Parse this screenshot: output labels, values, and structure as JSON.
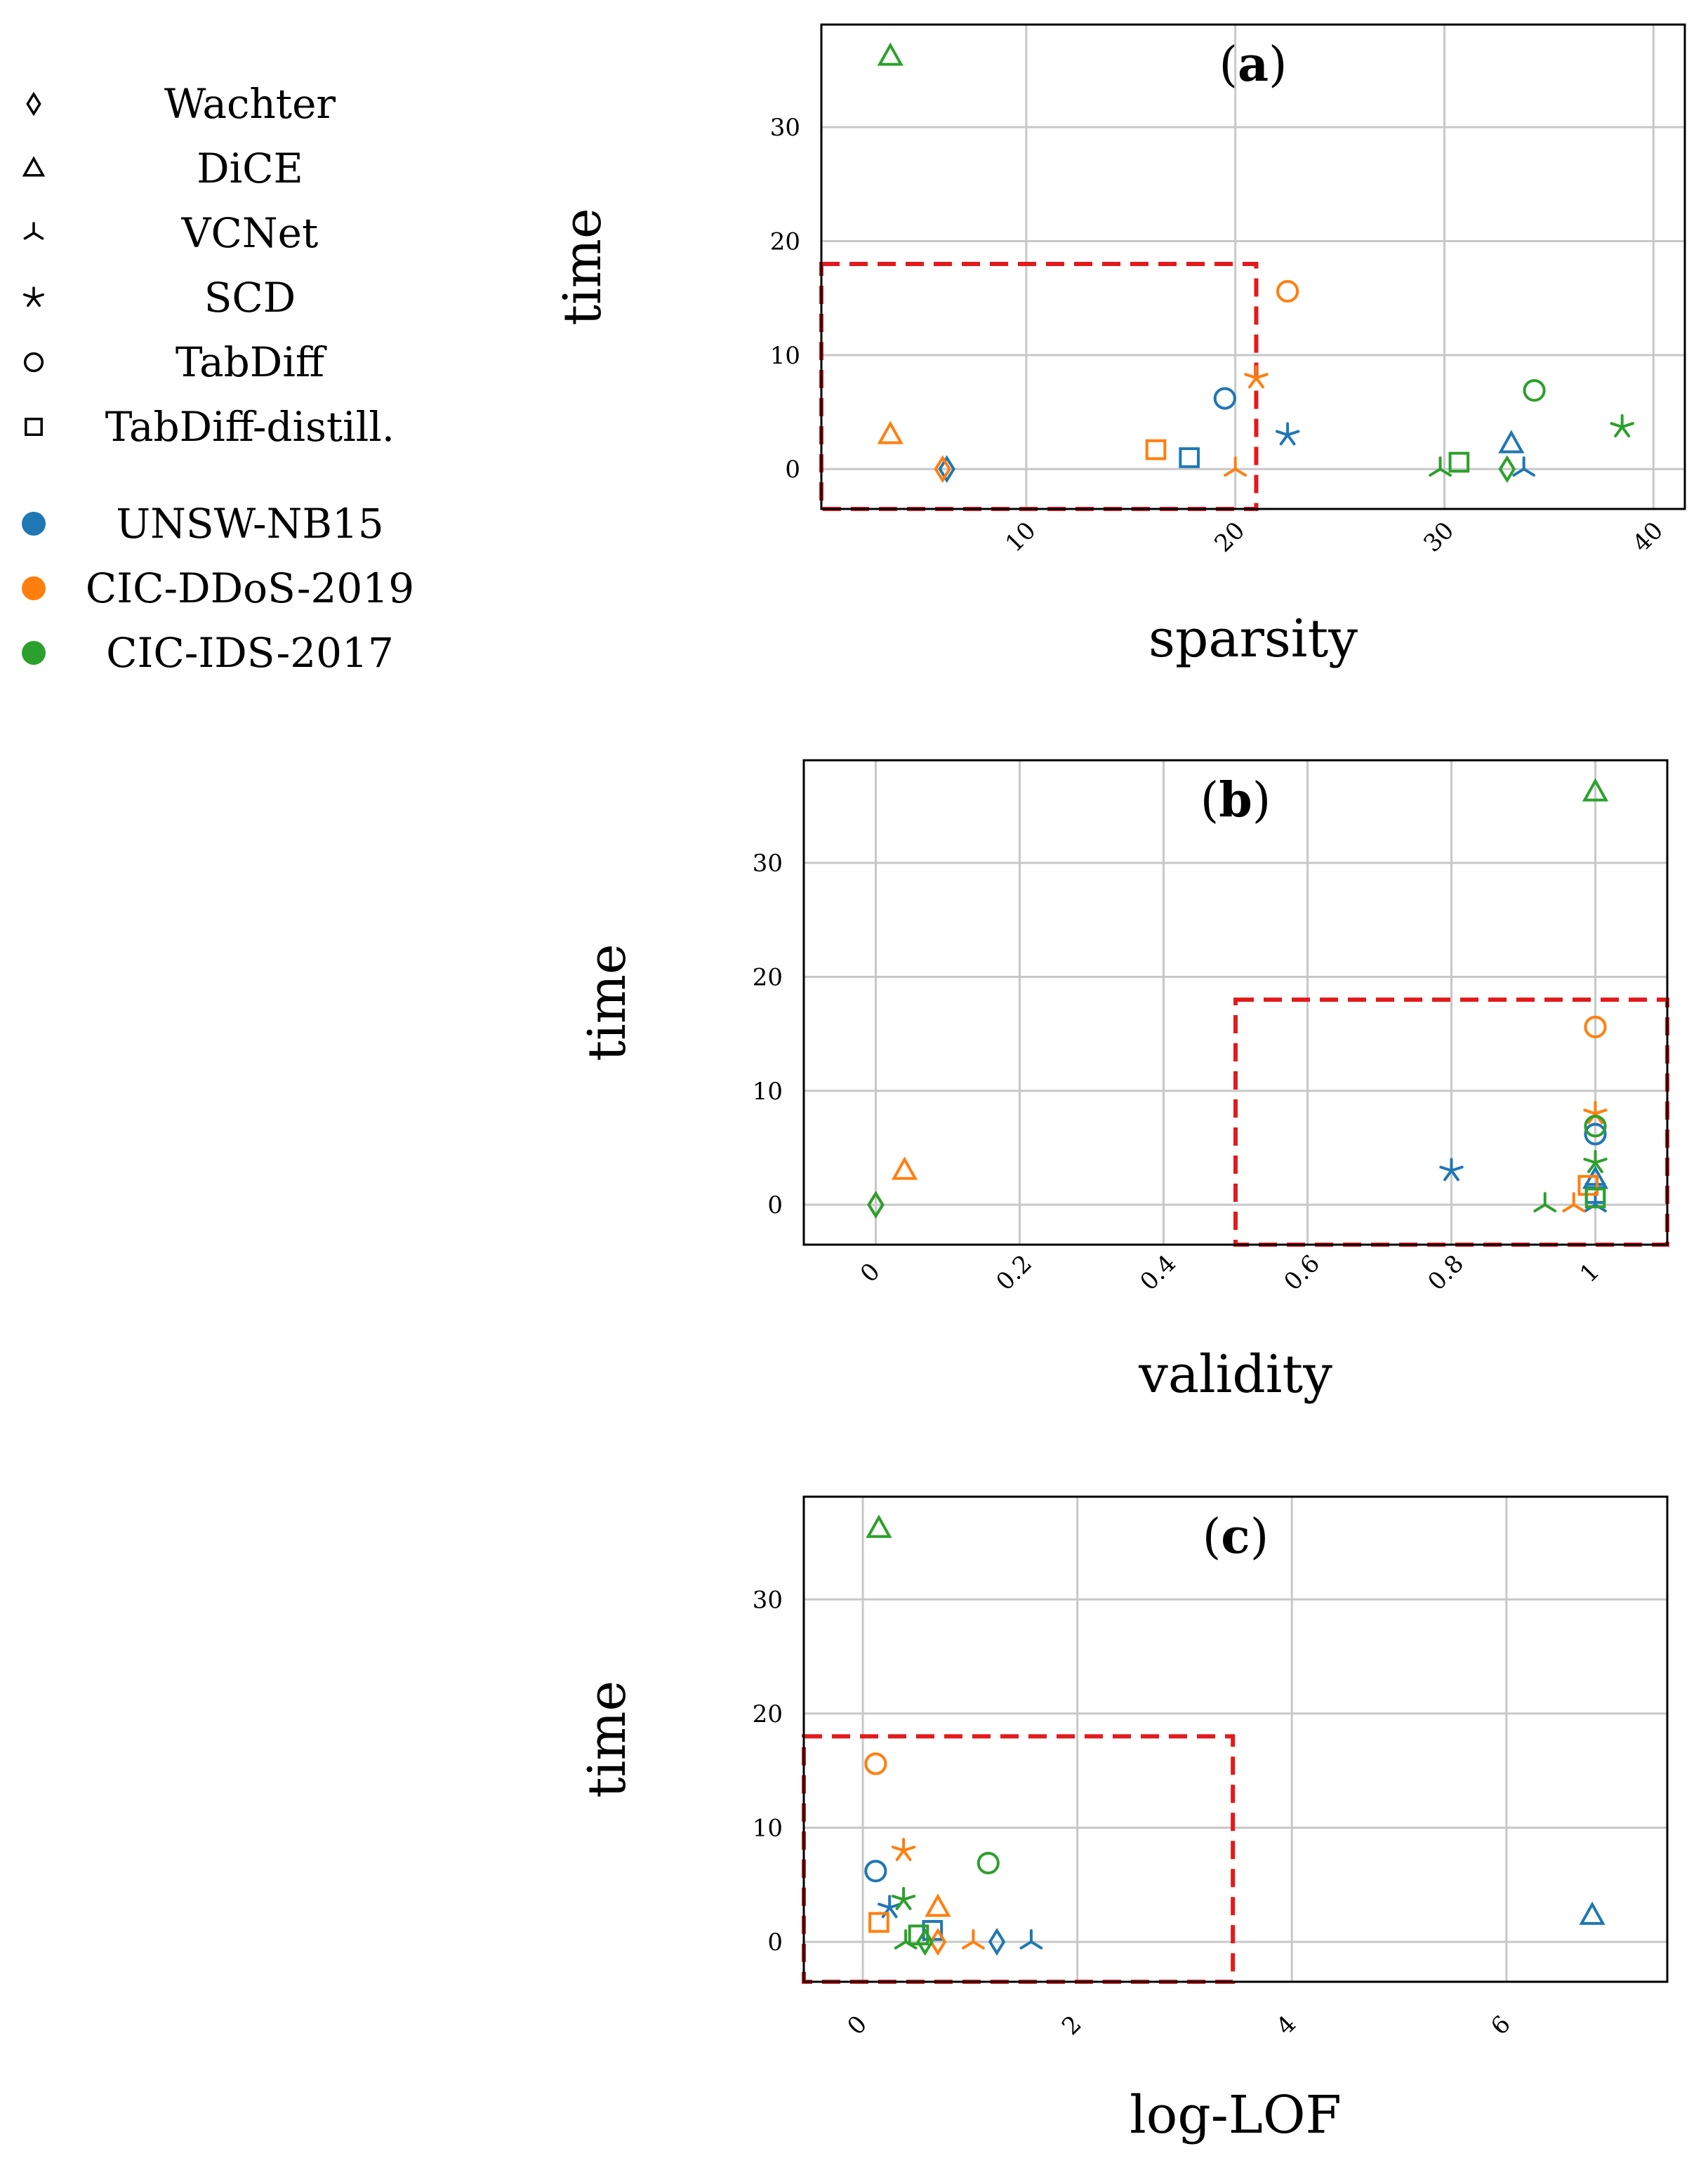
{
  "colors": {
    "UNSW-NB15": "#1f77b4",
    "CIC-DDoS-2019": "#ff7f0e",
    "CIC-IDS-2017": "#2ca02c",
    "highlight": "#e31a1c",
    "grid": "#c8c8c8"
  },
  "legend": {
    "methods": [
      {
        "name": "Wachter",
        "marker": "diamond-icon"
      },
      {
        "name": "DiCE",
        "marker": "triangle-icon"
      },
      {
        "name": "VCNet",
        "marker": "tri-down-icon"
      },
      {
        "name": "SCD",
        "marker": "star-icon"
      },
      {
        "name": "TabDiff",
        "marker": "circle-icon"
      },
      {
        "name": "TabDiff-distill.",
        "marker": "square-icon"
      }
    ],
    "datasets": [
      "UNSW-NB15",
      "CIC-DDoS-2019",
      "CIC-IDS-2017"
    ]
  },
  "chart_data": [
    {
      "type": "scatter",
      "title": "(a)",
      "xlabel": "sparsity",
      "ylabel": "time",
      "xlim": [
        0.2,
        41.5
      ],
      "ylim": [
        -3.5,
        39
      ],
      "xticks": [
        10,
        20,
        30,
        40
      ],
      "yticks": [
        0,
        10,
        20,
        30
      ],
      "highlight_box": {
        "x": [
          0.2,
          21
        ],
        "y": [
          -3.5,
          18
        ]
      },
      "series": [
        {
          "name": "UNSW-NB15",
          "points": [
            {
              "method": "Wachter",
              "x": 6.2,
              "y": 0
            },
            {
              "method": "DiCE",
              "x": 33.2,
              "y": 2.2
            },
            {
              "method": "VCNet",
              "x": 33.8,
              "y": 0
            },
            {
              "method": "SCD",
              "x": 22.5,
              "y": 3
            },
            {
              "method": "TabDiff",
              "x": 19.5,
              "y": 6.2
            },
            {
              "method": "TabDiff-distill.",
              "x": 17.8,
              "y": 1
            }
          ]
        },
        {
          "name": "CIC-DDoS-2019",
          "points": [
            {
              "method": "Wachter",
              "x": 6,
              "y": 0
            },
            {
              "method": "DiCE",
              "x": 3.5,
              "y": 3
            },
            {
              "method": "VCNet",
              "x": 20,
              "y": 0
            },
            {
              "method": "SCD",
              "x": 21,
              "y": 8
            },
            {
              "method": "TabDiff",
              "x": 22.5,
              "y": 15.6
            },
            {
              "method": "TabDiff-distill.",
              "x": 16.2,
              "y": 1.7
            }
          ]
        },
        {
          "name": "CIC-IDS-2017",
          "points": [
            {
              "method": "Wachter",
              "x": 33,
              "y": 0
            },
            {
              "method": "DiCE",
              "x": 3.5,
              "y": 36.2
            },
            {
              "method": "VCNet",
              "x": 29.8,
              "y": 0
            },
            {
              "method": "SCD",
              "x": 38.5,
              "y": 3.7
            },
            {
              "method": "TabDiff",
              "x": 34.3,
              "y": 6.9
            },
            {
              "method": "TabDiff-distill.",
              "x": 30.7,
              "y": 0.6
            }
          ]
        }
      ]
    },
    {
      "type": "scatter",
      "title": "(b)",
      "xlabel": "validity",
      "ylabel": "time",
      "xlim": [
        -0.1,
        1.1
      ],
      "ylim": [
        -3.5,
        39
      ],
      "xticks": [
        0,
        0.2,
        0.4,
        0.6,
        0.8,
        1
      ],
      "yticks": [
        0,
        10,
        20,
        30
      ],
      "highlight_box": {
        "x": [
          0.5,
          1.1
        ],
        "y": [
          -3.5,
          18
        ]
      },
      "series": [
        {
          "name": "UNSW-NB15",
          "points": [
            {
              "method": "Wachter",
              "x": 0,
              "y": 0
            },
            {
              "method": "DiCE",
              "x": 1,
              "y": 2.2
            },
            {
              "method": "VCNet",
              "x": 1,
              "y": 0
            },
            {
              "method": "SCD",
              "x": 0.8,
              "y": 3
            },
            {
              "method": "TabDiff",
              "x": 1,
              "y": 6.2
            },
            {
              "method": "TabDiff-distill.",
              "x": 1,
              "y": 1
            }
          ]
        },
        {
          "name": "CIC-DDoS-2019",
          "points": [
            {
              "method": "Wachter",
              "x": 0,
              "y": 0
            },
            {
              "method": "DiCE",
              "x": 0.04,
              "y": 3
            },
            {
              "method": "VCNet",
              "x": 0.97,
              "y": 0
            },
            {
              "method": "SCD",
              "x": 1,
              "y": 8
            },
            {
              "method": "TabDiff",
              "x": 1,
              "y": 15.6
            },
            {
              "method": "TabDiff-distill.",
              "x": 0.99,
              "y": 1.7
            }
          ]
        },
        {
          "name": "CIC-IDS-2017",
          "points": [
            {
              "method": "Wachter",
              "x": 0,
              "y": 0
            },
            {
              "method": "DiCE",
              "x": 1,
              "y": 36.2
            },
            {
              "method": "VCNet",
              "x": 0.93,
              "y": 0
            },
            {
              "method": "SCD",
              "x": 1,
              "y": 3.7
            },
            {
              "method": "TabDiff",
              "x": 1,
              "y": 6.9
            },
            {
              "method": "TabDiff-distill.",
              "x": 1,
              "y": 0.6
            }
          ]
        }
      ]
    },
    {
      "type": "scatter",
      "title": "(c)",
      "xlabel": "log-LOF",
      "ylabel": "time",
      "xlim": [
        -0.55,
        7.5
      ],
      "ylim": [
        -3.5,
        39
      ],
      "xticks": [
        0,
        2,
        4,
        6
      ],
      "yticks": [
        0,
        10,
        20,
        30
      ],
      "highlight_box": {
        "x": [
          -0.55,
          3.45
        ],
        "y": [
          -3.5,
          18
        ]
      },
      "series": [
        {
          "name": "UNSW-NB15",
          "points": [
            {
              "method": "Wachter",
              "x": 1.25,
              "y": 0
            },
            {
              "method": "DiCE",
              "x": 6.8,
              "y": 2.3
            },
            {
              "method": "VCNet",
              "x": 1.57,
              "y": 0
            },
            {
              "method": "SCD",
              "x": 0.25,
              "y": 3
            },
            {
              "method": "TabDiff",
              "x": 0.12,
              "y": 6.2
            },
            {
              "method": "TabDiff-distill.",
              "x": 0.65,
              "y": 1
            }
          ]
        },
        {
          "name": "CIC-DDoS-2019",
          "points": [
            {
              "method": "Wachter",
              "x": 0.7,
              "y": 0
            },
            {
              "method": "DiCE",
              "x": 0.7,
              "y": 3
            },
            {
              "method": "VCNet",
              "x": 1.03,
              "y": 0
            },
            {
              "method": "SCD",
              "x": 0.38,
              "y": 8
            },
            {
              "method": "TabDiff",
              "x": 0.12,
              "y": 15.6
            },
            {
              "method": "TabDiff-distill.",
              "x": 0.15,
              "y": 1.7
            }
          ]
        },
        {
          "name": "CIC-IDS-2017",
          "points": [
            {
              "method": "Wachter",
              "x": 0.58,
              "y": 0
            },
            {
              "method": "DiCE",
              "x": 0.15,
              "y": 36.2
            },
            {
              "method": "VCNet",
              "x": 0.4,
              "y": 0
            },
            {
              "method": "SCD",
              "x": 0.38,
              "y": 3.7
            },
            {
              "method": "TabDiff",
              "x": 1.17,
              "y": 6.9
            },
            {
              "method": "TabDiff-distill.",
              "x": 0.52,
              "y": 0.6
            }
          ]
        }
      ]
    }
  ]
}
